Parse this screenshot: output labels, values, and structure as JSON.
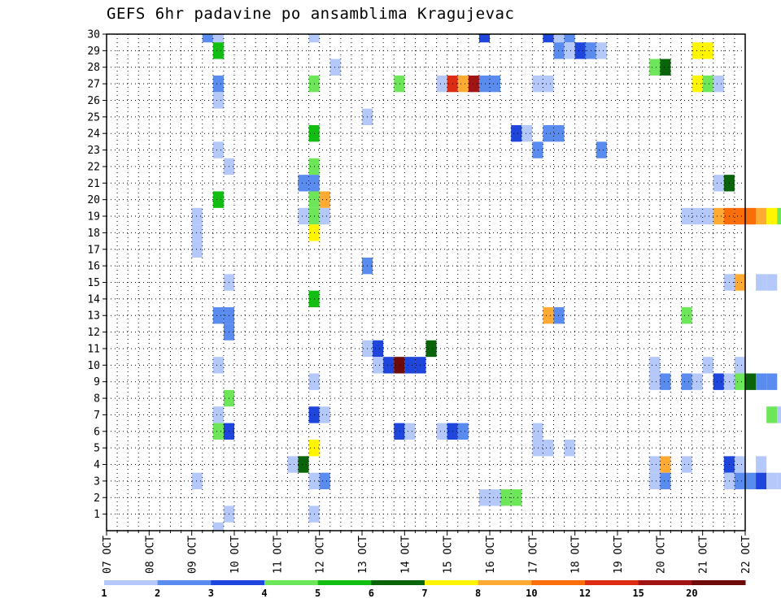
{
  "chart_data": {
    "type": "heatmap",
    "title": "GEFS 6hr padavine po ansamblima Kragujevac",
    "x_tick_labels": [
      "07 OCT",
      "08 OCT",
      "09 OCT",
      "10 OCT",
      "11 OCT",
      "12 OCT",
      "13 OCT",
      "14 OCT",
      "15 OCT",
      "16 OCT",
      "17 OCT",
      "18 OCT",
      "19 OCT",
      "20 OCT",
      "21 OCT",
      "22 OCT"
    ],
    "x_range_days": [
      0,
      15
    ],
    "y_tick_labels": [
      "1",
      "2",
      "3",
      "4",
      "5",
      "6",
      "7",
      "8",
      "9",
      "10",
      "11",
      "12",
      "13",
      "14",
      "15",
      "16",
      "17",
      "18",
      "19",
      "20",
      "21",
      "22",
      "23",
      "24",
      "25",
      "26",
      "27",
      "28",
      "29",
      "30"
    ],
    "y_range": [
      0,
      30
    ],
    "grid": true,
    "color_scale": {
      "colors": [
        "#b4c8fa",
        "#5a8cf0",
        "#1e46dc",
        "#6ee65a",
        "#12be12",
        "#0a640a",
        "#fff500",
        "#ffaa32",
        "#fa6e0a",
        "#dc2d14",
        "#a01414",
        "#6e0a0a"
      ],
      "labels": [
        "1",
        "2",
        "3",
        "4",
        "5",
        "6",
        "7",
        "8",
        "10",
        "12",
        "15",
        "20"
      ]
    },
    "cells": [
      [
        2.25,
        30,
        1
      ],
      [
        2.5,
        30,
        0
      ],
      [
        4.75,
        30,
        0
      ],
      [
        8.75,
        30,
        2
      ],
      [
        10.25,
        30,
        2
      ],
      [
        10.5,
        30,
        0
      ],
      [
        10.75,
        30,
        1
      ],
      [
        2.5,
        29,
        4
      ],
      [
        10.5,
        29,
        1
      ],
      [
        10.75,
        29,
        0
      ],
      [
        11.0,
        29,
        2
      ],
      [
        11.25,
        29,
        1
      ],
      [
        11.5,
        29,
        0
      ],
      [
        13.75,
        29,
        6
      ],
      [
        14.0,
        29,
        6
      ],
      [
        5.25,
        28,
        0
      ],
      [
        12.75,
        28,
        3
      ],
      [
        13.0,
        28,
        5
      ],
      [
        2.5,
        27,
        1
      ],
      [
        4.75,
        27,
        3
      ],
      [
        6.75,
        27,
        3
      ],
      [
        7.75,
        27,
        0
      ],
      [
        8.0,
        27,
        9
      ],
      [
        8.25,
        27,
        7
      ],
      [
        8.5,
        27,
        10
      ],
      [
        8.75,
        27,
        1
      ],
      [
        9.0,
        27,
        1
      ],
      [
        10.0,
        27,
        0
      ],
      [
        10.25,
        27,
        0
      ],
      [
        13.75,
        27,
        6
      ],
      [
        14.0,
        27,
        3
      ],
      [
        14.25,
        27,
        0
      ],
      [
        2.5,
        26,
        0
      ],
      [
        6.0,
        25,
        0
      ],
      [
        4.75,
        24,
        4
      ],
      [
        9.5,
        24,
        2
      ],
      [
        9.75,
        24,
        0
      ],
      [
        10.25,
        24,
        1
      ],
      [
        10.5,
        24,
        1
      ],
      [
        2.5,
        23,
        0
      ],
      [
        10.0,
        23,
        1
      ],
      [
        11.5,
        23,
        1
      ],
      [
        2.75,
        22,
        0
      ],
      [
        4.75,
        22,
        3
      ],
      [
        4.5,
        21,
        1
      ],
      [
        4.75,
        21,
        1
      ],
      [
        14.25,
        21,
        0
      ],
      [
        14.5,
        21,
        5
      ],
      [
        2.5,
        20,
        4
      ],
      [
        4.75,
        20,
        3
      ],
      [
        5.0,
        20,
        7
      ],
      [
        2.0,
        19,
        0
      ],
      [
        4.5,
        19,
        0
      ],
      [
        4.75,
        19,
        3
      ],
      [
        5.0,
        19,
        0
      ],
      [
        13.5,
        19,
        0
      ],
      [
        13.75,
        19,
        0
      ],
      [
        14.0,
        19,
        0
      ],
      [
        14.25,
        19,
        7
      ],
      [
        14.5,
        19,
        8
      ],
      [
        14.75,
        19,
        8
      ],
      [
        15.0,
        19,
        8
      ],
      [
        15.25,
        19,
        7
      ],
      [
        15.5,
        19,
        6
      ],
      [
        15.75,
        19,
        3
      ],
      [
        4.75,
        18,
        6
      ],
      [
        2.0,
        18,
        0
      ],
      [
        2.0,
        17,
        0
      ],
      [
        6.0,
        16,
        1
      ],
      [
        2.75,
        15,
        0
      ],
      [
        14.5,
        15,
        0
      ],
      [
        14.75,
        15,
        7
      ],
      [
        15.25,
        15,
        0
      ],
      [
        15.5,
        15,
        0
      ],
      [
        4.75,
        14,
        4
      ],
      [
        2.5,
        13,
        1
      ],
      [
        2.75,
        13,
        1
      ],
      [
        10.25,
        13,
        7
      ],
      [
        10.5,
        13,
        1
      ],
      [
        13.5,
        13,
        3
      ],
      [
        2.75,
        12,
        1
      ],
      [
        6.0,
        11,
        0
      ],
      [
        6.25,
        11,
        2
      ],
      [
        7.5,
        11,
        5
      ],
      [
        2.5,
        10,
        0
      ],
      [
        6.25,
        10,
        0
      ],
      [
        6.5,
        10,
        2
      ],
      [
        6.75,
        10,
        11
      ],
      [
        7.0,
        10,
        2
      ],
      [
        7.25,
        10,
        2
      ],
      [
        12.75,
        10,
        0
      ],
      [
        14.0,
        10,
        0
      ],
      [
        14.75,
        10,
        0
      ],
      [
        4.75,
        9,
        0
      ],
      [
        12.75,
        9,
        0
      ],
      [
        13.0,
        9,
        1
      ],
      [
        13.5,
        9,
        1
      ],
      [
        13.75,
        9,
        0
      ],
      [
        14.25,
        9,
        2
      ],
      [
        14.5,
        9,
        0
      ],
      [
        14.75,
        9,
        3
      ],
      [
        15.0,
        9,
        5
      ],
      [
        15.25,
        9,
        1
      ],
      [
        15.5,
        9,
        1
      ],
      [
        2.75,
        8,
        3
      ],
      [
        2.5,
        7,
        0
      ],
      [
        4.75,
        7,
        2
      ],
      [
        5.0,
        7,
        0
      ],
      [
        15.5,
        7,
        3
      ],
      [
        15.75,
        7,
        0
      ],
      [
        2.5,
        6,
        3
      ],
      [
        2.75,
        6,
        2
      ],
      [
        6.75,
        6,
        2
      ],
      [
        7.0,
        6,
        0
      ],
      [
        7.75,
        6,
        0
      ],
      [
        8.0,
        6,
        2
      ],
      [
        8.25,
        6,
        1
      ],
      [
        10.0,
        6,
        0
      ],
      [
        4.75,
        5,
        6
      ],
      [
        10.0,
        5,
        0
      ],
      [
        10.25,
        5,
        0
      ],
      [
        10.75,
        5,
        0
      ],
      [
        4.25,
        4,
        0
      ],
      [
        4.5,
        4,
        5
      ],
      [
        12.75,
        4,
        0
      ],
      [
        13.0,
        4,
        7
      ],
      [
        13.5,
        4,
        0
      ],
      [
        14.5,
        4,
        2
      ],
      [
        14.75,
        4,
        0
      ],
      [
        15.25,
        4,
        0
      ],
      [
        2.0,
        3,
        0
      ],
      [
        4.75,
        3,
        0
      ],
      [
        5.0,
        3,
        1
      ],
      [
        12.75,
        3,
        0
      ],
      [
        13.0,
        3,
        1
      ],
      [
        14.5,
        3,
        0
      ],
      [
        14.75,
        3,
        1
      ],
      [
        15.0,
        3,
        1
      ],
      [
        15.25,
        3,
        2
      ],
      [
        15.5,
        3,
        0
      ],
      [
        15.75,
        3,
        0
      ],
      [
        8.75,
        2,
        0
      ],
      [
        9.0,
        2,
        0
      ],
      [
        9.25,
        2,
        3
      ],
      [
        9.5,
        2,
        3
      ],
      [
        2.75,
        1,
        0
      ],
      [
        4.75,
        1,
        0
      ],
      [
        2.5,
        0,
        0
      ]
    ]
  }
}
